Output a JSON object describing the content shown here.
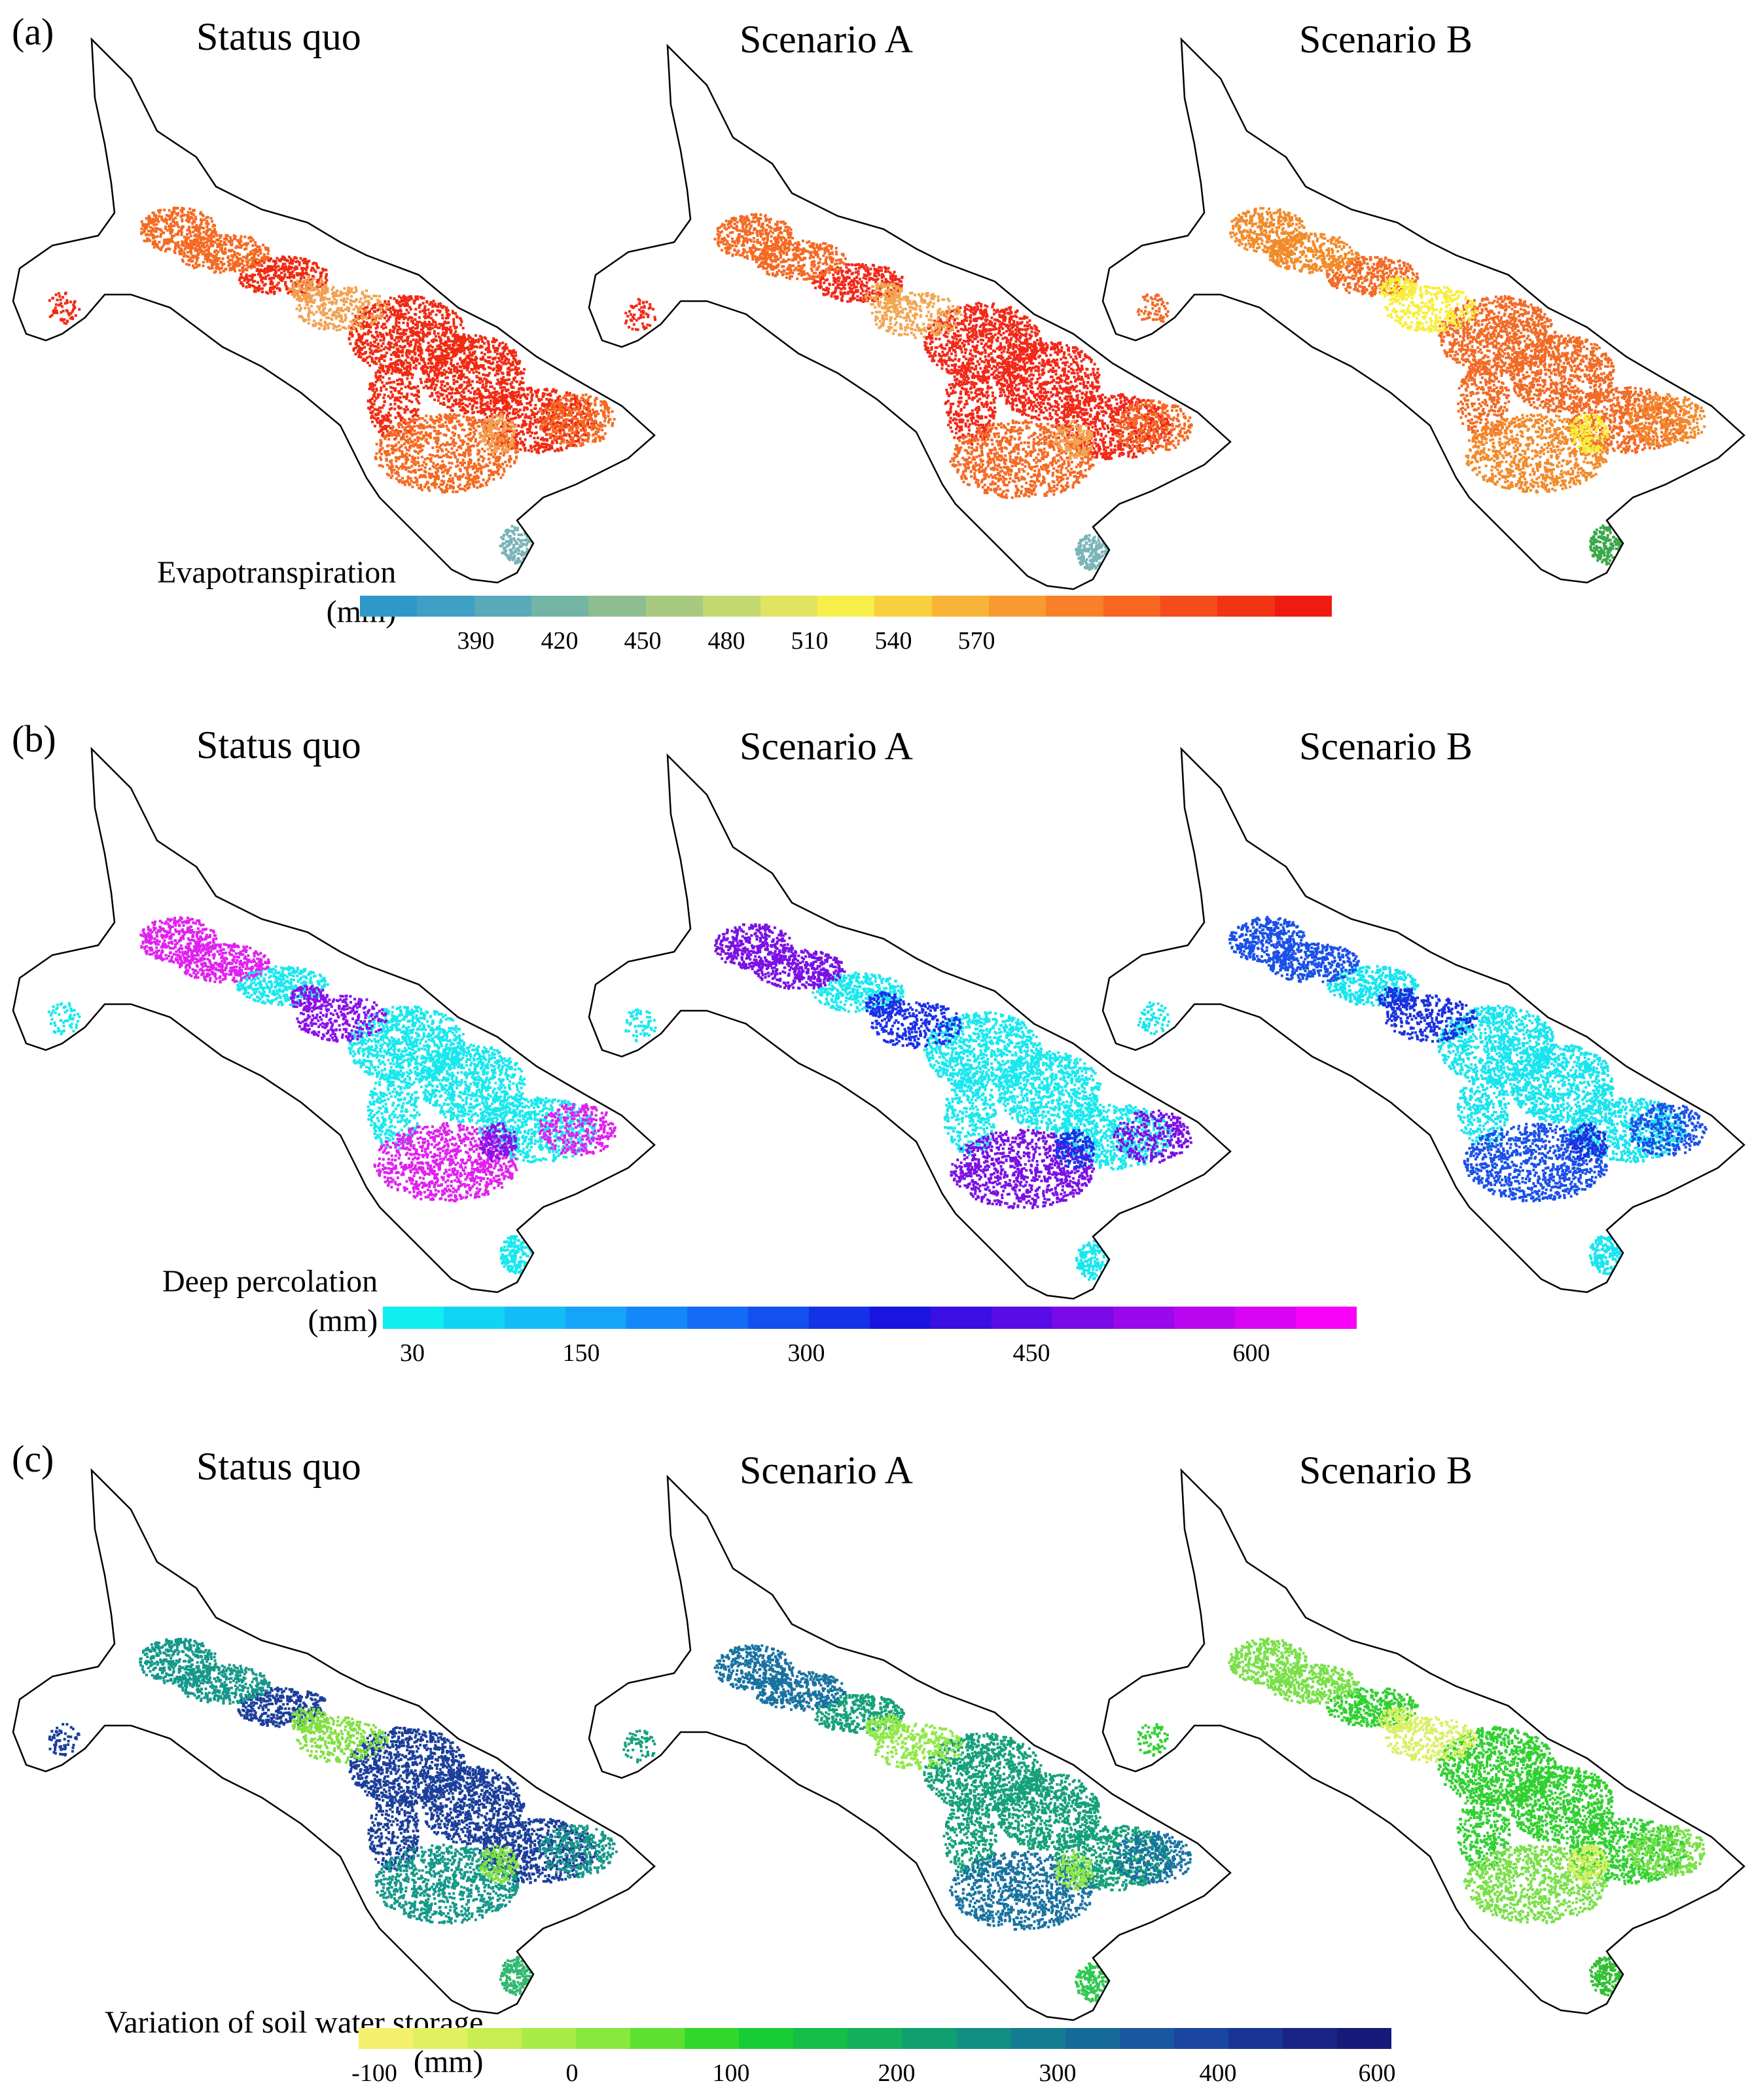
{
  "panels": [
    {
      "label": "(a)",
      "column_titles": [
        "Status quo",
        "Scenario A",
        "Scenario B"
      ],
      "legend": {
        "title_line1": "Evapotranspiration",
        "title_line2": "(mm)",
        "ticks": [
          "390",
          "420",
          "450",
          "480",
          "510",
          "540",
          "570"
        ],
        "colors": [
          "#2e98c8",
          "#3ea0c4",
          "#58aab8",
          "#74b4a4",
          "#8ebe90",
          "#a8ca80",
          "#c4d870",
          "#e0e460",
          "#f8ee4a",
          "#f8d040",
          "#f8b438",
          "#f89a30",
          "#f88028",
          "#f86620",
          "#f44c1a",
          "#f03414",
          "#ee1c10"
        ]
      },
      "maps": [
        {
          "name": "status-quo",
          "dominant": "#f02a12",
          "secondary": "#f46a22",
          "accent": "#f2a050",
          "tip": "#78b4b8"
        },
        {
          "name": "scenario-a",
          "dominant": "#f22818",
          "secondary": "#f46a24",
          "accent": "#f2a650",
          "tip": "#78b4b8"
        },
        {
          "name": "scenario-b",
          "dominant": "#f26a24",
          "secondary": "#f28a2a",
          "accent": "#f8ee3a",
          "tip": "#3aa84a"
        }
      ]
    },
    {
      "label": "(b)",
      "column_titles": [
        "Status quo",
        "Scenario A",
        "Scenario B"
      ],
      "legend": {
        "title_line1": "Deep percolation",
        "title_line2": "(mm)",
        "ticks": [
          "30",
          "150",
          "300",
          "450",
          "600"
        ],
        "colors": [
          "#10eef0",
          "#10d4f4",
          "#12bcf6",
          "#14a4f8",
          "#1488f8",
          "#146cf6",
          "#1450f0",
          "#1432e6",
          "#1a14e0",
          "#3a0ee4",
          "#5a0ce6",
          "#7a0ae8",
          "#9a08ec",
          "#ba06f0",
          "#da04f4",
          "#f802f8"
        ]
      },
      "maps": [
        {
          "name": "status-quo",
          "dominant": "#18e8ee",
          "secondary": "#e020f0",
          "accent": "#8a10e8",
          "tip": "#18e8ee"
        },
        {
          "name": "scenario-a",
          "dominant": "#18e8ee",
          "secondary": "#7a10e4",
          "accent": "#1a30e8",
          "tip": "#18e8ee"
        },
        {
          "name": "scenario-b",
          "dominant": "#18e4ee",
          "secondary": "#1a50e8",
          "accent": "#1a30e0",
          "tip": "#18e4ee"
        }
      ]
    },
    {
      "label": "(c)",
      "column_titles": [
        "Status quo",
        "Scenario A",
        "Scenario B"
      ],
      "legend": {
        "title_line1": "Variation of soil water storage",
        "title_line2": "(mm)",
        "ticks": [
          "-100",
          "0",
          "100",
          "200",
          "300",
          "400",
          "600"
        ],
        "colors": [
          "#f4f06e",
          "#e0f060",
          "#c8ee52",
          "#aaec46",
          "#88e83c",
          "#5ee032",
          "#30d82c",
          "#18cc36",
          "#14be48",
          "#12b05c",
          "#10a070",
          "#128e82",
          "#147c90",
          "#166a98",
          "#1858a0",
          "#1a46a0",
          "#1a3494",
          "#1a2486",
          "#161a78"
        ]
      },
      "maps": [
        {
          "name": "status-quo",
          "dominant": "#1a3e9a",
          "secondary": "#14988a",
          "accent": "#80e040",
          "tip": "#30b870"
        },
        {
          "name": "scenario-a",
          "dominant": "#14a07a",
          "secondary": "#1872a0",
          "accent": "#90e848",
          "tip": "#30c850"
        },
        {
          "name": "scenario-b",
          "dominant": "#30d030",
          "secondary": "#78e048",
          "accent": "#d8f060",
          "tip": "#30c030"
        }
      ]
    }
  ]
}
